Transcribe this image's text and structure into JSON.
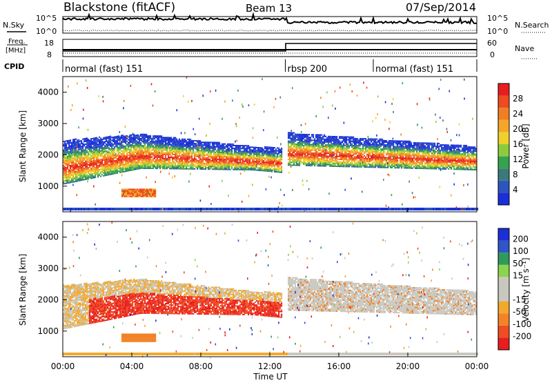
{
  "header": {
    "title": "Blackstone (fitACF)",
    "beam": "Beam 13",
    "date": "07/Sep/2014"
  },
  "top_panel": {
    "nsky_label": "N.Sky",
    "nsearch_label": "N.Search",
    "left_ticks": [
      "10^5",
      "10^0"
    ],
    "right_ticks": [
      "10^5",
      "10^0"
    ],
    "freq_label_1": "Freq.",
    "freq_label_2": "[MHz]",
    "freq_ticks": [
      "18",
      "8"
    ],
    "nave_label": "Nave",
    "nave_ticks": [
      "60",
      "0"
    ],
    "cpid_label": "CPID",
    "cpid_segments": [
      {
        "label": "normal (fast) 151",
        "start": 0.0,
        "end": 12.9
      },
      {
        "label": "rbsp 200",
        "start": 12.9,
        "end": 18.0
      },
      {
        "label": "normal (fast) 151",
        "start": 18.0,
        "end": 24.0
      }
    ]
  },
  "colors": {
    "power": [
      "#1b2fd8",
      "#2c55c0",
      "#3b7a7a",
      "#36a24e",
      "#8ccc3c",
      "#f0d02a",
      "#f5a628",
      "#f07f22",
      "#ee4b20",
      "#e81d1d"
    ],
    "velocity": [
      "#e81d1d",
      "#ef4d22",
      "#f38326",
      "#f2a92c",
      "#c8c8c0",
      "#c8c8c0",
      "#8bd44d",
      "#2f9a5a",
      "#2f55c8",
      "#1c2fd6"
    ]
  },
  "chart_data": [
    {
      "type": "heatmap",
      "title": "Power",
      "xlabel": "Time UT",
      "ylabel": "Slant Range [km]",
      "x_ticks": [
        "00:00",
        "04:00",
        "08:00",
        "12:00",
        "16:00",
        "20:00",
        "00:00"
      ],
      "x_range_hours": [
        0,
        24
      ],
      "ylim": [
        180,
        4500
      ],
      "y_ticks": [
        1000,
        2000,
        3000,
        4000
      ],
      "colorbar_label": "Power [dB]",
      "colorbar_ticks": [
        4,
        8,
        12,
        16,
        20,
        24,
        28
      ],
      "colorbar_range": [
        0,
        32
      ],
      "scatter_bands": [
        {
          "t0": 0.0,
          "t1": 4.5,
          "r_low_start": 1050,
          "r_low_end": 1550,
          "r_high_start": 2450,
          "r_high_end": 2650
        },
        {
          "t0": 4.5,
          "t1": 11.0,
          "r_low_start": 1550,
          "r_low_end": 1500,
          "r_high_start": 2650,
          "r_high_end": 2250
        },
        {
          "t0": 11.0,
          "t1": 13.0,
          "r_low_start": 1500,
          "r_low_end": 1400,
          "r_high_start": 2250,
          "r_high_end": 2200
        },
        {
          "t0": 13.0,
          "t1": 24.0,
          "r_low_start": 1650,
          "r_low_end": 1500,
          "r_high_start": 2700,
          "r_high_end": 2250
        }
      ]
    },
    {
      "type": "heatmap",
      "title": "Velocity",
      "xlabel": "Time UT",
      "ylabel": "Slant Range [km]",
      "x_ticks": [
        "00:00",
        "04:00",
        "08:00",
        "12:00",
        "16:00",
        "20:00",
        "00:00"
      ],
      "x_range_hours": [
        0,
        24
      ],
      "ylim": [
        180,
        4500
      ],
      "y_ticks": [
        1000,
        2000,
        3000,
        4000
      ],
      "colorbar_label": "Velocity [m s⁻¹]",
      "colorbar_ticks": [
        "200",
        "100",
        "50",
        "15",
        "-15",
        "-50",
        "-100",
        "-200"
      ]
    }
  ]
}
